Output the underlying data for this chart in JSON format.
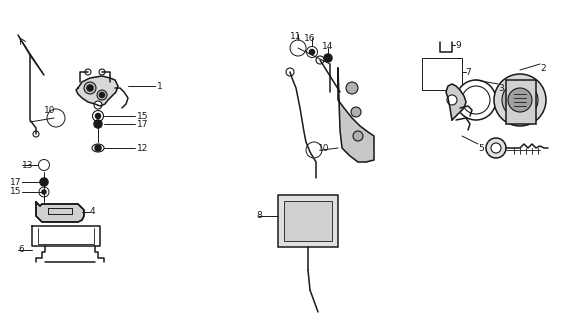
{
  "bg_color": "#ffffff",
  "lc": "#1a1a1a",
  "fig_w": 5.8,
  "fig_h": 3.2,
  "dpi": 100,
  "lw": 1.1,
  "lw_t": 0.7,
  "fs": 6.5
}
